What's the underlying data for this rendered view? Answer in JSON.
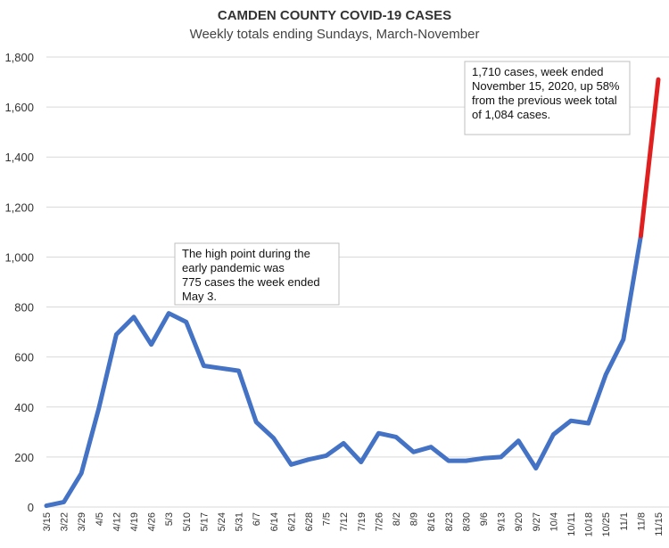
{
  "chart_data": {
    "type": "line",
    "title": "CAMDEN COUNTY COVID-19 CASES",
    "subtitle": "Weekly totals ending Sundays, March-November",
    "ylim": [
      0,
      1800
    ],
    "yticks": [
      0,
      200,
      400,
      600,
      800,
      1000,
      1200,
      1400,
      1600,
      1800
    ],
    "ytick_labels": [
      "0",
      "200",
      "400",
      "600",
      "800",
      "1,000",
      "1,200",
      "1,400",
      "1,600",
      "1,800"
    ],
    "grid": "horizontal",
    "categories": [
      "3/15",
      "3/22",
      "3/29",
      "4/5",
      "4/12",
      "4/19",
      "4/26",
      "5/3",
      "5/10",
      "5/17",
      "5/24",
      "5/31",
      "6/7",
      "6/14",
      "6/21",
      "6/28",
      "7/5",
      "7/12",
      "7/19",
      "7/26",
      "8/2",
      "8/9",
      "8/16",
      "8/23",
      "8/30",
      "9/6",
      "9/13",
      "9/20",
      "9/27",
      "10/4",
      "10/11",
      "10/18",
      "10/25",
      "11/1",
      "11/8",
      "11/15"
    ],
    "series": [
      {
        "color": "#4472c4",
        "values": [
          5,
          20,
          135,
          395,
          690,
          760,
          650,
          775,
          740,
          565,
          555,
          545,
          340,
          275,
          170,
          190,
          205,
          255,
          180,
          295,
          280,
          220,
          240,
          185,
          185,
          195,
          200,
          265,
          155,
          290,
          345,
          335,
          530,
          670,
          1084,
          1710
        ]
      }
    ],
    "highlight": {
      "from_index": 34,
      "to_index": 35,
      "color": "#e02020"
    },
    "annotations": [
      {
        "lines": [
          "1,710 cases, week ended",
          "November 15, 2020, up 58%",
          "from the previous week total",
          "of 1,084 cases."
        ]
      },
      {
        "lines": [
          "The high point during the",
          "early pandemic was",
          "775 cases the week ended",
          "May 3."
        ]
      }
    ]
  }
}
